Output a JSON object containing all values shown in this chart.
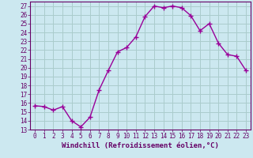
{
  "x": [
    0,
    1,
    2,
    3,
    4,
    5,
    6,
    7,
    8,
    9,
    10,
    11,
    12,
    13,
    14,
    15,
    16,
    17,
    18,
    19,
    20,
    21,
    22,
    23
  ],
  "y": [
    15.7,
    15.6,
    15.2,
    15.6,
    14.0,
    13.3,
    14.4,
    17.5,
    19.7,
    21.8,
    22.3,
    23.5,
    25.8,
    27.0,
    26.8,
    27.0,
    26.8,
    25.9,
    24.2,
    25.0,
    22.8,
    21.5,
    21.3,
    19.7
  ],
  "line_color": "#990099",
  "marker": "+",
  "markersize": 4,
  "linewidth": 1.0,
  "markeredgewidth": 1.0,
  "xlabel": "Windchill (Refroidissement éolien,°C)",
  "xlabel_fontsize": 6.5,
  "background_color": "#cce8f0",
  "grid_color": "#aacccc",
  "ylim": [
    13,
    27.5
  ],
  "xlim": [
    -0.5,
    23.5
  ],
  "yticks": [
    13,
    14,
    15,
    16,
    17,
    18,
    19,
    20,
    21,
    22,
    23,
    24,
    25,
    26,
    27
  ],
  "xticks": [
    0,
    1,
    2,
    3,
    4,
    5,
    6,
    7,
    8,
    9,
    10,
    11,
    12,
    13,
    14,
    15,
    16,
    17,
    18,
    19,
    20,
    21,
    22,
    23
  ],
  "tick_fontsize": 5.5,
  "tick_color": "#660066",
  "axis_color": "#660066"
}
